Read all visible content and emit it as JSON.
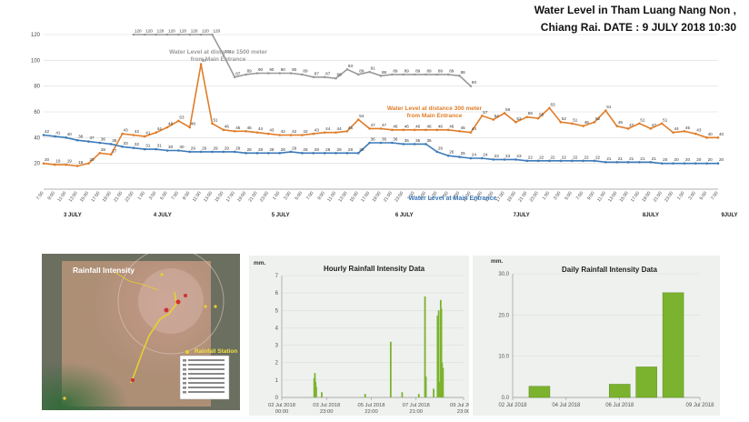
{
  "header": {
    "title_line1": "Water Level in Tham Luang Nang Non ,",
    "title_line2": "Chiang Rai. DATE : 9 JULY 2018 10:30"
  },
  "colors": {
    "entrance": "#3d7ab8",
    "d300": "#e07d29",
    "d1500": "#9a9a9a",
    "green": "#7cb32e"
  },
  "chart_data": [
    {
      "type": "line",
      "title": "Water Level in Tham Luang Nang Non , Chiang Rai. DATE : 9 JULY 2018 10:30",
      "ylim": [
        0,
        120
      ],
      "y_ticks": [
        20,
        40,
        60,
        80,
        100,
        120
      ],
      "x": [
        0,
        1,
        2,
        3,
        4,
        5,
        6,
        7,
        8,
        9,
        10,
        11,
        12,
        13,
        14,
        15,
        16,
        17,
        18,
        19,
        20,
        21,
        22,
        23,
        24,
        25,
        26,
        27,
        28,
        29,
        30,
        31,
        32,
        33,
        34,
        35,
        36,
        37,
        38,
        39,
        40,
        41,
        42,
        43,
        44,
        45,
        46,
        47,
        48,
        49,
        50,
        51,
        52,
        53,
        54,
        55,
        56,
        57,
        58,
        59,
        60
      ],
      "x_tick_labels": [
        "7:00",
        "9:00",
        "11:00",
        "13:00",
        "15:00",
        "17:00",
        "19:00",
        "21:00",
        "23:00",
        "1:00",
        "3:00",
        "5:00",
        "7:00",
        "9:00",
        "11:00",
        "13:00",
        "15:00",
        "17:00",
        "19:00",
        "21:00",
        "23:00",
        "1:00",
        "3:00",
        "5:00",
        "7:00",
        "9:00",
        "11:00",
        "13:00",
        "15:00",
        "17:00",
        "19:00",
        "21:00",
        "23:00",
        "1:00",
        "3:00",
        "5:00",
        "7:00",
        "9:00",
        "11:00",
        "13:00",
        "15:00",
        "17:00",
        "19:00",
        "21:00",
        "23:00",
        "1:00",
        "3:00",
        "5:00",
        "7:00",
        "9:00",
        "11:00",
        "13:00",
        "15:00",
        "17:00",
        "19:00",
        "21:00",
        "23:00",
        "1:00",
        "3:00",
        "5:00",
        "7:00"
      ],
      "date_labels": [
        "3 JULY",
        "4 JULY",
        "5 JULY",
        "6 JULY",
        "7JULY",
        "8JULY",
        "9JULY"
      ],
      "series": [
        {
          "name": "Water Level at distance 1500 meter from Main Entrance",
          "values": [
            null,
            null,
            null,
            null,
            null,
            null,
            null,
            null,
            120,
            120,
            120,
            120,
            120,
            120,
            120,
            120,
            104,
            87,
            89,
            90,
            90,
            90,
            90,
            89,
            87,
            87,
            86,
            93,
            89,
            91,
            88,
            89,
            89,
            89,
            89,
            89,
            89,
            88,
            80,
            null,
            null,
            null,
            null,
            null,
            null,
            null,
            null,
            null,
            null,
            null,
            null,
            null,
            null,
            null,
            null,
            null,
            null,
            null,
            null,
            null,
            null
          ]
        },
        {
          "name": "Water Level at distance 300 meter from Main Entrance",
          "values": [
            20,
            19,
            19,
            18,
            20,
            28,
            27,
            43,
            42,
            41,
            44,
            48,
            53,
            48,
            97,
            51,
            46,
            45,
            45,
            44,
            43,
            42,
            42,
            42,
            43,
            44,
            44,
            45,
            54,
            47,
            47,
            46,
            46,
            46,
            46,
            46,
            46,
            45,
            44,
            57,
            54,
            59,
            52,
            56,
            55,
            63,
            52,
            51,
            49,
            52,
            61,
            49,
            47,
            51,
            47,
            51,
            44,
            45,
            43,
            40,
            40
          ]
        },
        {
          "name": "Water Level at Main Entrance",
          "values": [
            42,
            41,
            40,
            38,
            37,
            36,
            35,
            33,
            32,
            31,
            31,
            30,
            30,
            29,
            29,
            29,
            29,
            29,
            28,
            28,
            28,
            28,
            29,
            28,
            28,
            28,
            28,
            28,
            28,
            36,
            36,
            36,
            35,
            35,
            35,
            29,
            26,
            25,
            24,
            24,
            23,
            23,
            23,
            22,
            22,
            22,
            22,
            22,
            22,
            22,
            21,
            21,
            21,
            21,
            21,
            20,
            20,
            20,
            20,
            20,
            20
          ]
        }
      ]
    },
    {
      "type": "bar",
      "title": "Hourly Rainfall Intensity Data",
      "ylabel": "mm.",
      "ylim": [
        0,
        7
      ],
      "y_ticks": [
        0,
        1,
        2,
        3,
        4,
        5,
        6,
        7
      ],
      "x_ticks": [
        {
          "line1": "02 Jul 2018",
          "line2": "00:00"
        },
        {
          "line1": "03 Jul 2018",
          "line2": "23:00"
        },
        {
          "line1": "05 Jul 2018",
          "line2": "22:00"
        },
        {
          "line1": "07 Jul 2018",
          "line2": "21:00"
        },
        {
          "line1": "09 Jul 2018",
          "line2": "23:00"
        }
      ],
      "x_range_days": [
        0,
        7.96
      ],
      "bars": [
        {
          "day": 1.42,
          "value": 1.1
        },
        {
          "day": 1.45,
          "value": 1.4
        },
        {
          "day": 1.48,
          "value": 0.9
        },
        {
          "day": 1.51,
          "value": 0.6
        },
        {
          "day": 1.75,
          "value": 0.3
        },
        {
          "day": 3.65,
          "value": 0.2
        },
        {
          "day": 4.77,
          "value": 3.2
        },
        {
          "day": 5.27,
          "value": 0.3
        },
        {
          "day": 6.0,
          "value": 0.2
        },
        {
          "day": 6.27,
          "value": 5.8
        },
        {
          "day": 6.31,
          "value": 1.2
        },
        {
          "day": 6.65,
          "value": 0.5
        },
        {
          "day": 6.82,
          "value": 4.7
        },
        {
          "day": 6.87,
          "value": 5.0
        },
        {
          "day": 6.91,
          "value": 0.9
        },
        {
          "day": 6.96,
          "value": 5.6
        },
        {
          "day": 6.99,
          "value": 5.1
        },
        {
          "day": 7.02,
          "value": 2.0
        },
        {
          "day": 7.06,
          "value": 1.7
        }
      ]
    },
    {
      "type": "bar",
      "title": "Daily Rainfall Intensity Data",
      "ylabel": "mm.",
      "ylim": [
        0,
        30
      ],
      "y_ticks": [
        0,
        10,
        20,
        30
      ],
      "y_tick_labels": [
        "0.0",
        "10.0",
        "20.0",
        "30.0"
      ],
      "x_ticks": [
        {
          "day": 0,
          "label": "02 Jul 2018"
        },
        {
          "day": 2,
          "label": "04 Jul 2018"
        },
        {
          "day": 4,
          "label": "06 Jul 2018"
        },
        {
          "day": 7,
          "label": "09 Jul 2018"
        }
      ],
      "x_range_days": [
        0,
        7
      ],
      "bars": [
        {
          "day": 1,
          "value": 2.7
        },
        {
          "day": 4,
          "value": 3.2
        },
        {
          "day": 5,
          "value": 7.4
        },
        {
          "day": 6,
          "value": 25.4
        }
      ]
    }
  ],
  "labels": {
    "series_1500": [
      "Water Level at distance 1500 meter",
      "from Main Entrance"
    ],
    "series_300": [
      "Water Level at distance 300 meter",
      "from Main Entrance"
    ],
    "series_entrance": "Water Level at Main Entrance"
  },
  "map": {
    "title": "Rainfall Intensity",
    "legend_title": "Rainfall Station"
  }
}
